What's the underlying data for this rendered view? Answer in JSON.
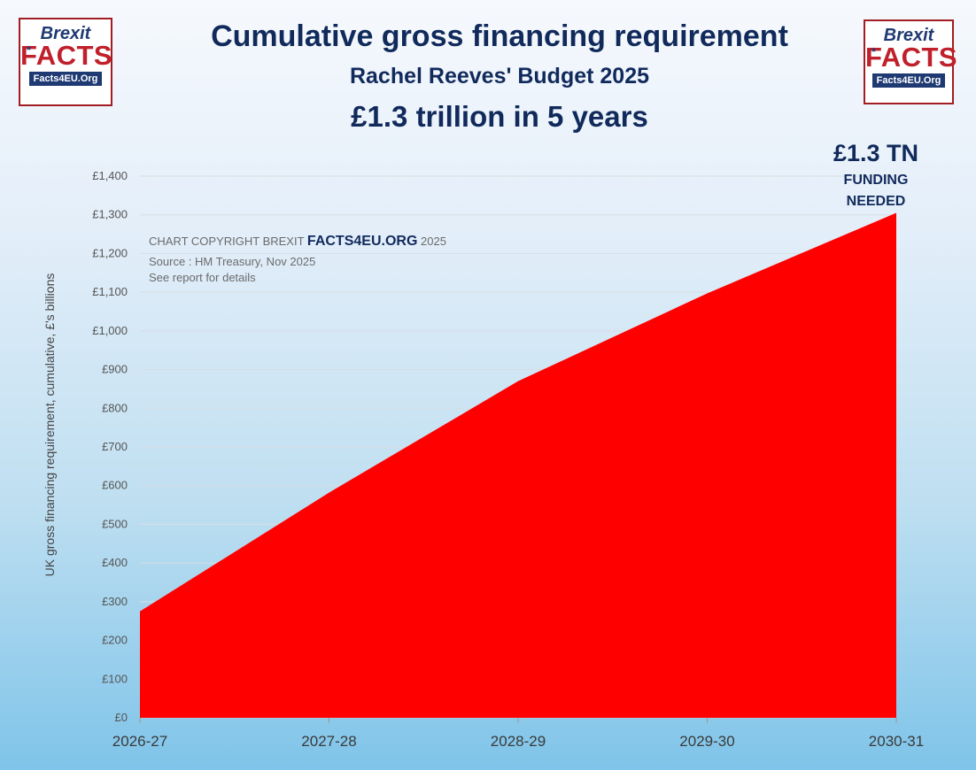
{
  "logo": {
    "word1": "Brexit",
    "word2": "FACTS",
    "site": "Facts4EU.Org"
  },
  "header": {
    "title": "Cumulative gross financing requirement",
    "subtitle": "Rachel Reeves' Budget 2025",
    "headline": "£1.3 trillion in 5 years"
  },
  "annotation": {
    "value": "£1.3 TN",
    "line1": "FUNDING",
    "line2": "NEEDED"
  },
  "credit": {
    "prefix": "CHART COPYRIGHT BREXIT",
    "site": "FACTS4EU.ORG",
    "year": "2025",
    "source": "Source : HM Treasury, Nov 2025",
    "note": "See report for details"
  },
  "colors": {
    "fill": "#ff0000",
    "title": "#112a5c",
    "logo_red": "#c0202b"
  },
  "chart_data": {
    "type": "area",
    "categories": [
      "2026-27",
      "2027-28",
      "2028-29",
      "2029-30",
      "2030-31"
    ],
    "values": [
      275,
      582,
      870,
      1097,
      1305
    ],
    "ylabel": "UK gross financing requirement, cumulative, £'s billions",
    "ylim": [
      0,
      1400
    ],
    "yticks": [
      "£0",
      "£100",
      "£200",
      "£300",
      "£400",
      "£500",
      "£600",
      "£700",
      "£800",
      "£900",
      "£1,000",
      "£1,100",
      "£1,200",
      "£1,300",
      "£1,400"
    ],
    "grid": true,
    "legend": "none"
  }
}
